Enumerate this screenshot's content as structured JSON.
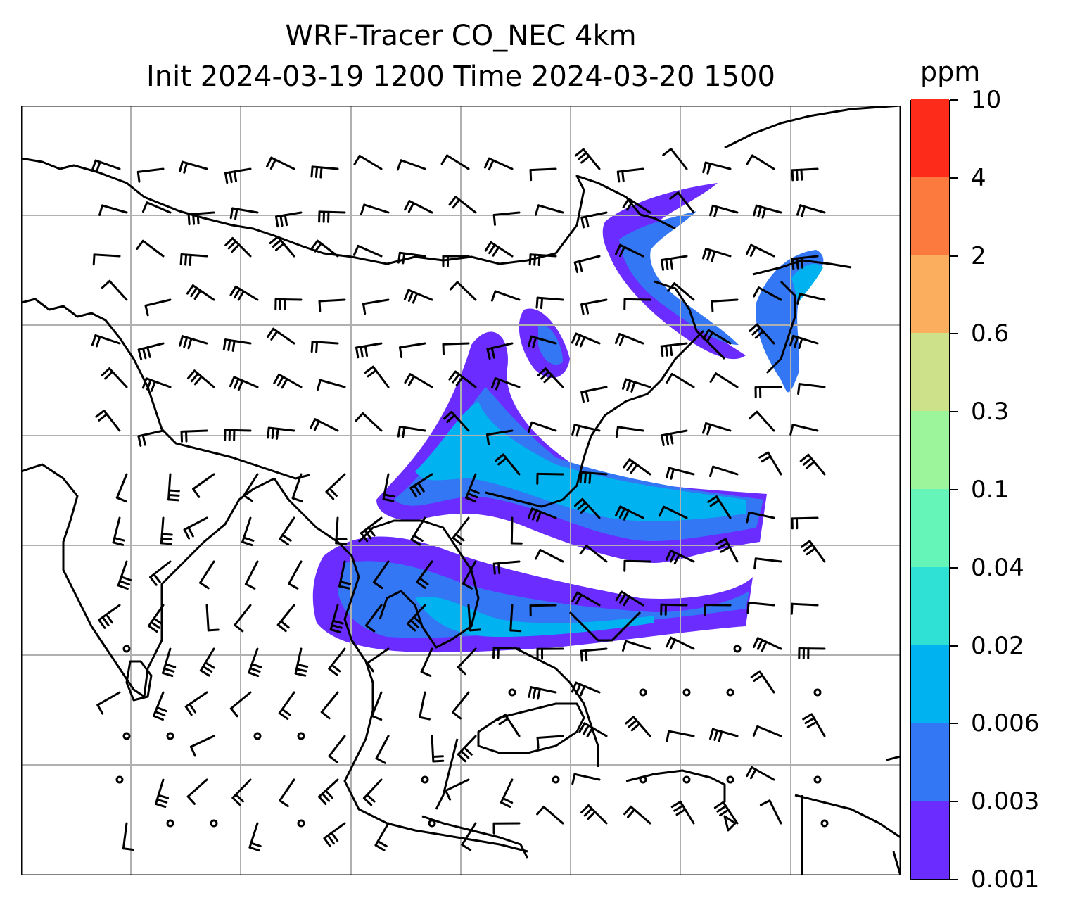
{
  "title": {
    "line1": "WRF-Tracer CO_NEC 4km",
    "line2": "Init 2024-03-19 1200 Time 2024-03-20 1500"
  },
  "colorbar": {
    "units": "ppm",
    "levels": [
      "0.001",
      "0.003",
      "0.006",
      "0.02",
      "0.04",
      "0.1",
      "0.3",
      "0.6",
      "2",
      "4",
      "10"
    ],
    "colors": [
      "#6a2cff",
      "#3377f5",
      "#00b2ef",
      "#2fe0d4",
      "#66f5b8",
      "#9cf59a",
      "#cde08a",
      "#fbae5e",
      "#fd7a3e",
      "#fd2b1a"
    ]
  },
  "map": {
    "gridlines": "on",
    "layers": [
      "coastlines",
      "country-borders",
      "wind-barbs",
      "tracer-concentration-fill"
    ],
    "tracer_colors": {
      "low": "#6a2cff",
      "mid": "#3377f5",
      "high": "#00b2ef",
      "peak": "#2fe0d4"
    }
  }
}
